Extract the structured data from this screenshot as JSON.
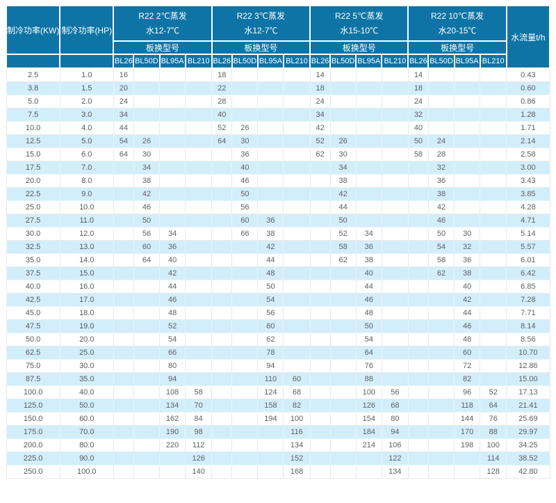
{
  "table": {
    "col1_header": "制冷功率(KW)",
    "col2_header": "制冷功率(HP)",
    "flow_header": "水流量t/h",
    "model_row_label": "板换型号",
    "sections": [
      {
        "line1": "R22 2℃蒸发",
        "line2": "水12-7℃",
        "models": [
          "BL26",
          "BL50D",
          "BL95A",
          "BL210"
        ]
      },
      {
        "line1": "R22 3℃蒸发",
        "line2": "水12-7℃",
        "models": [
          "BL26",
          "BL50D",
          "BL95A",
          "BL210"
        ]
      },
      {
        "line1": "R22 5℃蒸发",
        "line2": "水15-10℃",
        "models": [
          "BL26",
          "BL50D",
          "BL95A",
          "BL210"
        ]
      },
      {
        "line1": "R22 10℃蒸发",
        "line2": "水20-15℃",
        "models": [
          "BL26",
          "BL50D",
          "BL95A",
          "BL210"
        ]
      }
    ],
    "rows": [
      {
        "kw": "2.5",
        "hp": "1.0",
        "c": [
          "16",
          "",
          "",
          "",
          "18",
          "",
          "",
          "",
          "14",
          "",
          "",
          "",
          "14",
          "",
          "",
          ""
        ],
        "flow": "0.43"
      },
      {
        "kw": "3.8",
        "hp": "1.5",
        "c": [
          "20",
          "",
          "",
          "",
          "22",
          "",
          "",
          "",
          "18",
          "",
          "",
          "",
          "18",
          "",
          "",
          ""
        ],
        "flow": "0.60"
      },
      {
        "kw": "5.0",
        "hp": "2.0",
        "c": [
          "24",
          "",
          "",
          "",
          "28",
          "",
          "",
          "",
          "24",
          "",
          "",
          "",
          "24",
          "",
          "",
          ""
        ],
        "flow": "0.86"
      },
      {
        "kw": "7.5",
        "hp": "3.0",
        "c": [
          "34",
          "",
          "",
          "",
          "40",
          "",
          "",
          "",
          "34",
          "",
          "",
          "",
          "32",
          "",
          "",
          ""
        ],
        "flow": "1.28"
      },
      {
        "kw": "10.0",
        "hp": "4.0",
        "c": [
          "44",
          "",
          "",
          "",
          "52",
          "26",
          "",
          "",
          "42",
          "",
          "",
          "",
          "40",
          "",
          "",
          ""
        ],
        "flow": "1.71"
      },
      {
        "kw": "12.5",
        "hp": "5.0",
        "c": [
          "54",
          "26",
          "",
          "",
          "64",
          "30",
          "",
          "",
          "52",
          "26",
          "",
          "",
          "50",
          "24",
          "",
          ""
        ],
        "flow": "2.14"
      },
      {
        "kw": "15.0",
        "hp": "6.0",
        "c": [
          "64",
          "30",
          "",
          "",
          "",
          "36",
          "",
          "",
          "62",
          "30",
          "",
          "",
          "58",
          "28",
          "",
          ""
        ],
        "flow": "2.58"
      },
      {
        "kw": "17.5",
        "hp": "7.0",
        "c": [
          "",
          "34",
          "",
          "",
          "",
          "40",
          "",
          "",
          "",
          "34",
          "",
          "",
          "",
          "32",
          "",
          ""
        ],
        "flow": "3.00"
      },
      {
        "kw": "20.0",
        "hp": "8.0",
        "c": [
          "",
          "38",
          "",
          "",
          "",
          "46",
          "",
          "",
          "",
          "38",
          "",
          "",
          "",
          "36",
          "",
          ""
        ],
        "flow": "3.43"
      },
      {
        "kw": "22.5",
        "hp": "9.0",
        "c": [
          "",
          "42",
          "",
          "",
          "",
          "50",
          "",
          "",
          "",
          "42",
          "",
          "",
          "",
          "38",
          "",
          ""
        ],
        "flow": "3.85"
      },
      {
        "kw": "25.0",
        "hp": "10.0",
        "c": [
          "",
          "46",
          "",
          "",
          "",
          "56",
          "",
          "",
          "",
          "44",
          "",
          "",
          "",
          "42",
          "",
          ""
        ],
        "flow": "4.28"
      },
      {
        "kw": "27.5",
        "hp": "11.0",
        "c": [
          "",
          "50",
          "",
          "",
          "",
          "60",
          "36",
          "",
          "",
          "50",
          "",
          "",
          "",
          "46",
          "",
          ""
        ],
        "flow": "4.71"
      },
      {
        "kw": "30.0",
        "hp": "12.0",
        "c": [
          "",
          "56",
          "34",
          "",
          "",
          "66",
          "38",
          "",
          "",
          "52",
          "34",
          "",
          "",
          "50",
          "30",
          ""
        ],
        "flow": "5.14"
      },
      {
        "kw": "32.5",
        "hp": "13.0",
        "c": [
          "",
          "60",
          "36",
          "",
          "",
          "",
          "42",
          "",
          "",
          "58",
          "36",
          "",
          "",
          "54",
          "32",
          ""
        ],
        "flow": "5.57"
      },
      {
        "kw": "35.0",
        "hp": "14.0",
        "c": [
          "",
          "64",
          "40",
          "",
          "",
          "",
          "44",
          "",
          "",
          "62",
          "38",
          "",
          "",
          "58",
          "36",
          ""
        ],
        "flow": "6.01"
      },
      {
        "kw": "37.5",
        "hp": "15.0",
        "c": [
          "",
          "",
          "42",
          "",
          "",
          "",
          "48",
          "",
          "",
          "",
          "40",
          "",
          "",
          "62",
          "38",
          ""
        ],
        "flow": "6.42"
      },
      {
        "kw": "40.0",
        "hp": "16.0",
        "c": [
          "",
          "",
          "44",
          "",
          "",
          "",
          "50",
          "",
          "",
          "",
          "44",
          "",
          "",
          "",
          "40",
          ""
        ],
        "flow": "6.85"
      },
      {
        "kw": "42.5",
        "hp": "17.0",
        "c": [
          "",
          "",
          "46",
          "",
          "",
          "",
          "54",
          "",
          "",
          "",
          "46",
          "",
          "",
          "",
          "42",
          ""
        ],
        "flow": "7.28"
      },
      {
        "kw": "45.0",
        "hp": "18.0",
        "c": [
          "",
          "",
          "48",
          "",
          "",
          "",
          "56",
          "",
          "",
          "",
          "48",
          "",
          "",
          "",
          "44",
          ""
        ],
        "flow": "7.71"
      },
      {
        "kw": "47.5",
        "hp": "19.0",
        "c": [
          "",
          "",
          "52",
          "",
          "",
          "",
          "60",
          "",
          "",
          "",
          "50",
          "",
          "",
          "",
          "46",
          ""
        ],
        "flow": "8.14"
      },
      {
        "kw": "50.0",
        "hp": "20.0",
        "c": [
          "",
          "",
          "54",
          "",
          "",
          "",
          "62",
          "",
          "",
          "",
          "54",
          "",
          "",
          "",
          "48",
          ""
        ],
        "flow": "8.56"
      },
      {
        "kw": "62.5",
        "hp": "25.0",
        "c": [
          "",
          "",
          "66",
          "",
          "",
          "",
          "78",
          "",
          "",
          "",
          "64",
          "",
          "",
          "",
          "60",
          ""
        ],
        "flow": "10.70"
      },
      {
        "kw": "75.0",
        "hp": "30.0",
        "c": [
          "",
          "",
          "80",
          "",
          "",
          "",
          "94",
          "",
          "",
          "",
          "76",
          "",
          "",
          "",
          "72",
          ""
        ],
        "flow": "12.86"
      },
      {
        "kw": "87.5",
        "hp": "35.0",
        "c": [
          "",
          "",
          "94",
          "",
          "",
          "",
          "110",
          "60",
          "",
          "",
          "88",
          "",
          "",
          "",
          "82",
          ""
        ],
        "flow": "15.00"
      },
      {
        "kw": "100.0",
        "hp": "40.0",
        "c": [
          "",
          "",
          "108",
          "58",
          "",
          "",
          "124",
          "68",
          "",
          "",
          "100",
          "56",
          "",
          "",
          "96",
          "52"
        ],
        "flow": "17.13"
      },
      {
        "kw": "125.0",
        "hp": "50.0",
        "c": [
          "",
          "",
          "134",
          "70",
          "",
          "",
          "158",
          "82",
          "",
          "",
          "126",
          "68",
          "",
          "",
          "118",
          "64"
        ],
        "flow": "21.41"
      },
      {
        "kw": "150.0",
        "hp": "60.0",
        "c": [
          "",
          "",
          "162",
          "84",
          "",
          "",
          "194",
          "100",
          "",
          "",
          "154",
          "80",
          "",
          "",
          "144",
          "76"
        ],
        "flow": "25.69"
      },
      {
        "kw": "175.0",
        "hp": "70.0",
        "c": [
          "",
          "",
          "190",
          "98",
          "",
          "",
          "",
          "116",
          "",
          "",
          "184",
          "94",
          "",
          "",
          "170",
          "88"
        ],
        "flow": "29.97"
      },
      {
        "kw": "200.0",
        "hp": "80.0",
        "c": [
          "",
          "",
          "220",
          "112",
          "",
          "",
          "",
          "134",
          "",
          "",
          "214",
          "106",
          "",
          "",
          "198",
          "100"
        ],
        "flow": "34.25"
      },
      {
        "kw": "225.0",
        "hp": "90.0",
        "c": [
          "",
          "",
          "",
          "126",
          "",
          "",
          "",
          "152",
          "",
          "",
          "",
          "122",
          "",
          "",
          "",
          "114"
        ],
        "flow": "38.52"
      },
      {
        "kw": "250.0",
        "hp": "100.0",
        "c": [
          "",
          "",
          "",
          "140",
          "",
          "",
          "",
          "168",
          "",
          "",
          "",
          "134",
          "",
          "",
          "",
          "128"
        ],
        "flow": "42.80"
      }
    ]
  },
  "colors": {
    "header_bg": "#0e74a6",
    "header_text": "#ffffff",
    "stripe_bg": "#d3eefb",
    "body_text": "#5b5f63",
    "grid_line": "#e9e9e9"
  }
}
